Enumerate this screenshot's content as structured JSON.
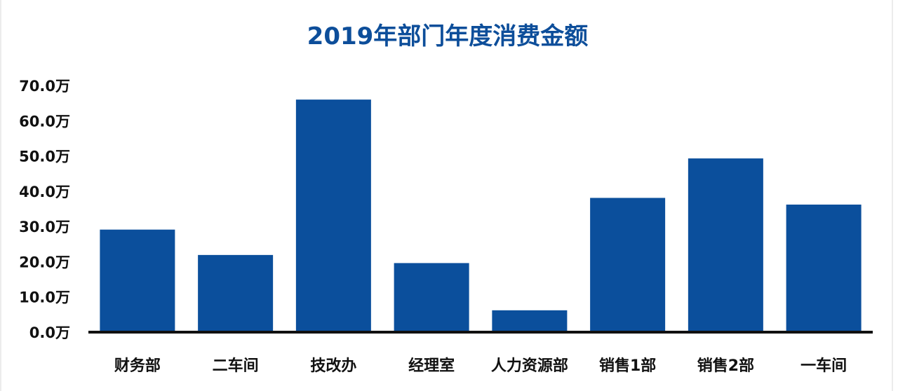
{
  "chart_data": {
    "type": "bar",
    "title": "2019年部门年度消费金额",
    "xlabel": "",
    "ylabel": "",
    "unit": "万",
    "ylim": [
      0,
      70
    ],
    "yticks": [
      0,
      10,
      20,
      30,
      40,
      50,
      60,
      70
    ],
    "ytick_labels": [
      "0.0万",
      "10.0万",
      "20.0万",
      "30.0万",
      "40.0万",
      "50.0万",
      "60.0万",
      "70.0万"
    ],
    "categories": [
      "财务部",
      "二车间",
      "技改办",
      "经理室",
      "人力资源部",
      "销售1部",
      "销售2部",
      "一车间"
    ],
    "values": [
      29.1,
      21.9,
      66.0,
      19.6,
      6.2,
      38.1,
      49.3,
      36.2
    ],
    "grid": false,
    "legend": "none",
    "bar_color": "#0b4f9c",
    "title_color": "#0d4e9a",
    "axis_color": "#111111"
  }
}
